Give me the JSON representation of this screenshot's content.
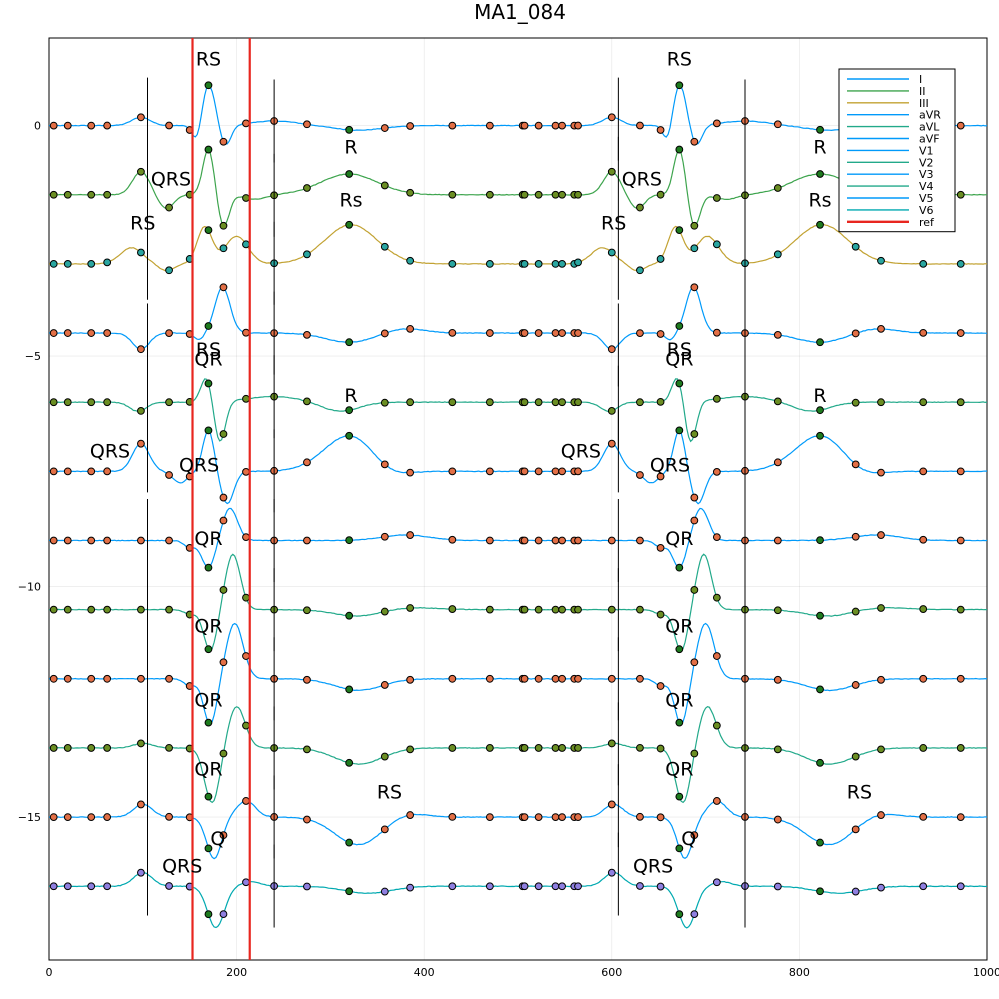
{
  "chart_data": {
    "type": "line",
    "title": "MA1_084",
    "xlabel": "",
    "ylabel": "",
    "xlim": [
      0,
      1000
    ],
    "ylim": [
      -18.1,
      1.9
    ],
    "xticks": [
      0,
      200,
      400,
      600,
      800,
      1000
    ],
    "yticks": [
      0,
      -5,
      -10,
      -15
    ],
    "ytick_labels": [
      "0",
      "−5",
      "−10",
      "−15"
    ],
    "grid": true,
    "legend_position": "top-right",
    "colors": {
      "I": "#009AFA",
      "II": "#3DA44D",
      "III": "#C2A232",
      "aVR": "#009AFA",
      "aVL": "#22A98A",
      "aVF": "#009AFA",
      "V1": "#009AFA",
      "V2": "#22A98A",
      "V3": "#009AFA",
      "V4": "#22A98A",
      "V5": "#009AFA",
      "V6": "#00A9B0",
      "ref": "#E8261F",
      "marker_orange": "#E26F46",
      "marker_olive": "#6B8E23",
      "marker_teal": "#2AA6A0",
      "marker_purple": "#8F7FE0",
      "marker_green": "#1E7B1E"
    },
    "series": [
      {
        "name": "I",
        "offset": 0
      },
      {
        "name": "II",
        "offset": -1.5
      },
      {
        "name": "III",
        "offset": -3
      },
      {
        "name": "aVR",
        "offset": -4.5
      },
      {
        "name": "aVL",
        "offset": -6
      },
      {
        "name": "aVF",
        "offset": -7.5
      },
      {
        "name": "V1",
        "offset": -9
      },
      {
        "name": "V2",
        "offset": -10.5
      },
      {
        "name": "V3",
        "offset": -12
      },
      {
        "name": "V4",
        "offset": -13.5
      },
      {
        "name": "V5",
        "offset": -15
      },
      {
        "name": "V6",
        "offset": -16.5
      },
      {
        "name": "ref"
      }
    ],
    "ref_lines": [
      153,
      214
    ],
    "annotations": [
      {
        "text": "RS",
        "x": 170,
        "y": 1.3
      },
      {
        "text": "RS",
        "x": 672,
        "y": 1.3
      },
      {
        "text": "R",
        "x": 322,
        "y": -0.6
      },
      {
        "text": "R",
        "x": 822,
        "y": -0.6
      },
      {
        "text": "QRS",
        "x": 130,
        "y": -1.3
      },
      {
        "text": "QRS",
        "x": 632,
        "y": -1.3
      },
      {
        "text": "Rs",
        "x": 322,
        "y": -1.75
      },
      {
        "text": "Rs",
        "x": 822,
        "y": -1.75
      },
      {
        "text": "RS",
        "x": 100,
        "y": -2.25
      },
      {
        "text": "RS",
        "x": 602,
        "y": -2.25
      },
      {
        "text": "RS",
        "x": 170,
        "y": -5.0
      },
      {
        "text": "QR",
        "x": 170,
        "y": -5.2
      },
      {
        "text": "RS",
        "x": 672,
        "y": -5.0
      },
      {
        "text": "QR",
        "x": 672,
        "y": -5.2
      },
      {
        "text": "R",
        "x": 322,
        "y": -6.0
      },
      {
        "text": "R",
        "x": 822,
        "y": -6.0
      },
      {
        "text": "QRS",
        "x": 65,
        "y": -7.2
      },
      {
        "text": "QRS",
        "x": 567,
        "y": -7.2
      },
      {
        "text": "QRS",
        "x": 160,
        "y": -7.5
      },
      {
        "text": "QRS",
        "x": 662,
        "y": -7.5
      },
      {
        "text": "QR",
        "x": 170,
        "y": -9.1
      },
      {
        "text": "QR",
        "x": 672,
        "y": -9.1
      },
      {
        "text": "QR",
        "x": 170,
        "y": -11.0
      },
      {
        "text": "QR",
        "x": 672,
        "y": -11.0
      },
      {
        "text": "QR",
        "x": 170,
        "y": -12.6
      },
      {
        "text": "QR",
        "x": 672,
        "y": -12.6
      },
      {
        "text": "QR",
        "x": 170,
        "y": -14.1
      },
      {
        "text": "QR",
        "x": 672,
        "y": -14.1
      },
      {
        "text": "RS",
        "x": 363,
        "y": -14.6
      },
      {
        "text": "RS",
        "x": 864,
        "y": -14.6
      },
      {
        "text": "Q",
        "x": 180,
        "y": -15.6
      },
      {
        "text": "Q",
        "x": 682,
        "y": -15.6
      },
      {
        "text": "QRS",
        "x": 142,
        "y": -16.2
      },
      {
        "text": "QRS",
        "x": 644,
        "y": -16.2
      }
    ]
  }
}
